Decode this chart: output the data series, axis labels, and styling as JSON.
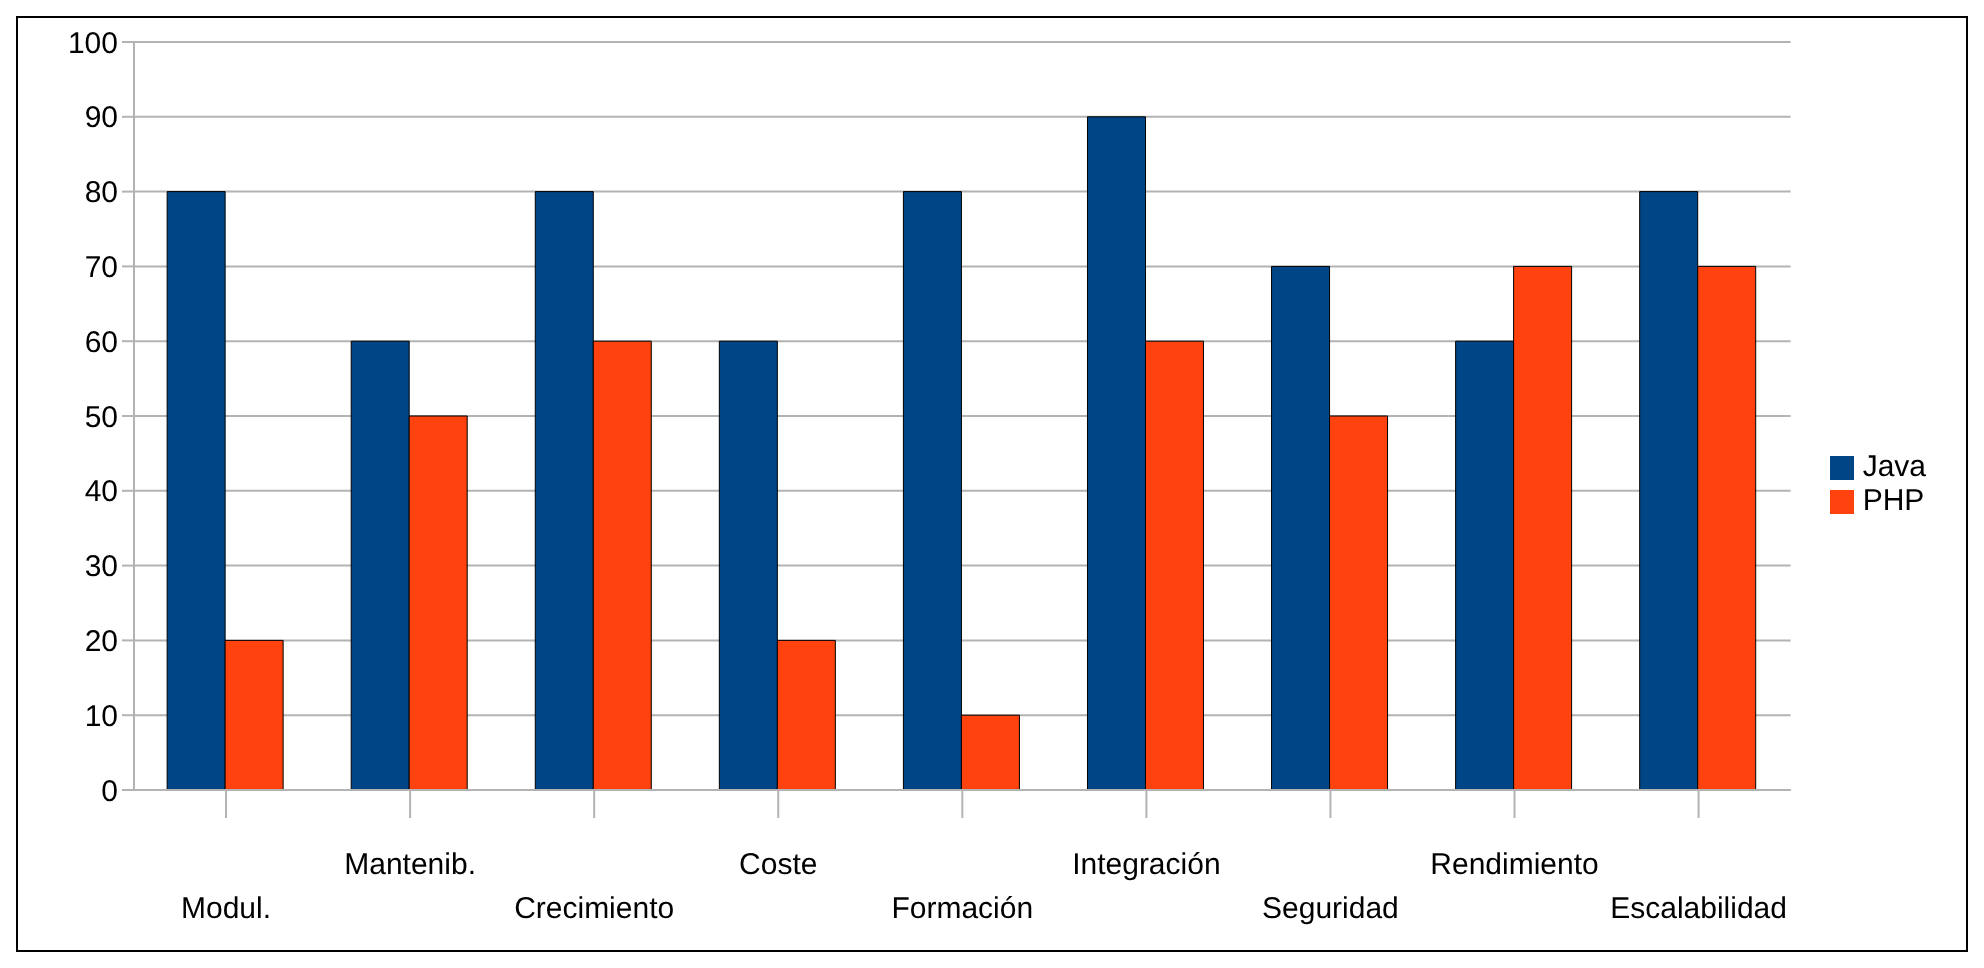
{
  "chart_data": {
    "type": "bar",
    "categories": [
      "Modul.",
      "Mantenib.",
      "Crecimiento",
      "Coste",
      "Formación",
      "Integración",
      "Seguridad",
      "Rendimiento",
      "Escalabilidad"
    ],
    "series": [
      {
        "name": "Java",
        "color": "#004586",
        "values": [
          80,
          60,
          80,
          60,
          80,
          90,
          70,
          60,
          80
        ]
      },
      {
        "name": "PHP",
        "color": "#ff420e",
        "values": [
          20,
          50,
          60,
          20,
          10,
          60,
          50,
          70,
          70
        ]
      }
    ],
    "ylim": [
      0,
      100
    ],
    "yticks": [
      0,
      10,
      20,
      30,
      40,
      50,
      60,
      70,
      80,
      90,
      100
    ],
    "grid": "y",
    "legend": "right"
  }
}
